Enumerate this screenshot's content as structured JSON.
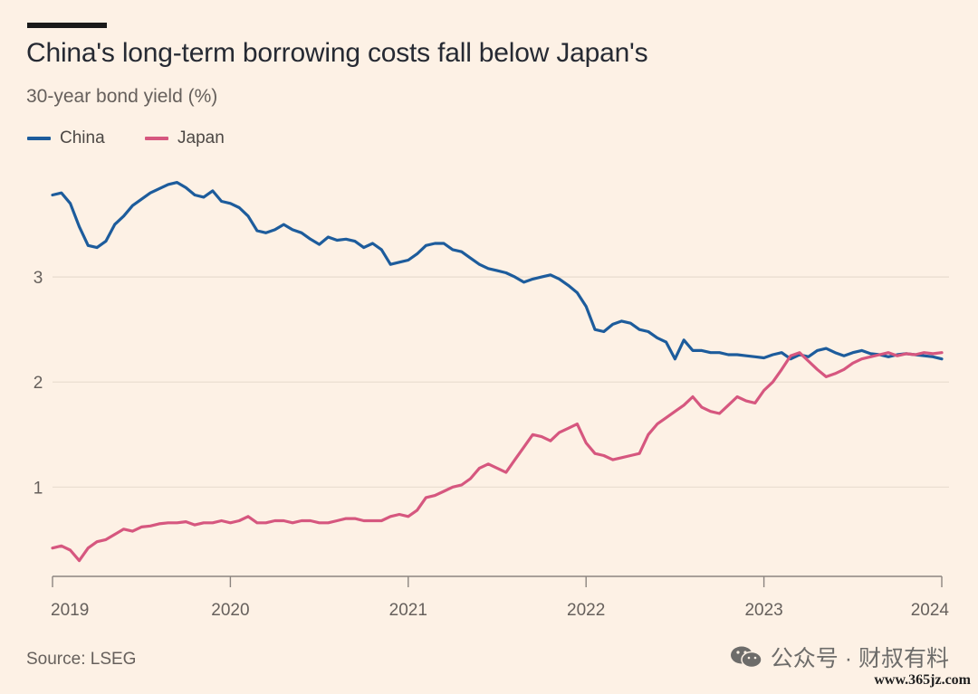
{
  "title": "China's long-term borrowing costs fall below Japan's",
  "subtitle": "30-year bond yield (%)",
  "source": "Source: LSEG",
  "watermark": "公众号 · 财叔有料",
  "site": "www.365jz.com",
  "colors": {
    "background": "#fdf1e5",
    "china": "#1d5c9c",
    "japan": "#d6577f",
    "grid": "#e8dccf",
    "axis": "#66605c"
  },
  "chart_data": {
    "type": "line",
    "title": "China's long-term borrowing costs fall below Japan's",
    "subtitle": "30-year bond yield (%)",
    "xlabel": "",
    "ylabel": "",
    "xlim": [
      2019.0,
      2024.0
    ],
    "ylim": [
      0.15,
      4.0
    ],
    "yticks": [
      1,
      2,
      3
    ],
    "ytick_labels": [
      "1",
      "2",
      "3"
    ],
    "xticks": [
      2019,
      2020,
      2021,
      2022,
      2023,
      2024
    ],
    "xtick_labels": [
      "2019",
      "2020",
      "2021",
      "2022",
      "2023",
      "2024"
    ],
    "legend": "top-left",
    "grid": "horizontal",
    "series": [
      {
        "name": "China",
        "color": "#1d5c9c",
        "x": [
          2019.0,
          2019.05,
          2019.1,
          2019.15,
          2019.2,
          2019.25,
          2019.3,
          2019.35,
          2019.4,
          2019.45,
          2019.5,
          2019.55,
          2019.6,
          2019.65,
          2019.7,
          2019.75,
          2019.8,
          2019.85,
          2019.9,
          2019.95,
          2020.0,
          2020.05,
          2020.1,
          2020.15,
          2020.2,
          2020.25,
          2020.3,
          2020.35,
          2020.4,
          2020.45,
          2020.5,
          2020.55,
          2020.6,
          2020.65,
          2020.7,
          2020.75,
          2020.8,
          2020.85,
          2020.9,
          2020.95,
          2021.0,
          2021.05,
          2021.1,
          2021.15,
          2021.2,
          2021.25,
          2021.3,
          2021.35,
          2021.4,
          2021.45,
          2021.5,
          2021.55,
          2021.6,
          2021.65,
          2021.7,
          2021.75,
          2021.8,
          2021.85,
          2021.9,
          2021.95,
          2022.0,
          2022.05,
          2022.1,
          2022.15,
          2022.2,
          2022.25,
          2022.3,
          2022.35,
          2022.4,
          2022.45,
          2022.5,
          2022.55,
          2022.6,
          2022.65,
          2022.7,
          2022.75,
          2022.8,
          2022.85,
          2022.9,
          2022.95,
          2023.0,
          2023.05,
          2023.1,
          2023.15,
          2023.2,
          2023.25,
          2023.3,
          2023.35,
          2023.4,
          2023.45,
          2023.5,
          2023.55,
          2023.6,
          2023.65,
          2023.7,
          2023.75,
          2023.8,
          2023.85,
          2023.9,
          2023.95,
          2024.0
        ],
        "values": [
          3.78,
          3.8,
          3.7,
          3.48,
          3.3,
          3.28,
          3.34,
          3.5,
          3.58,
          3.68,
          3.74,
          3.8,
          3.84,
          3.88,
          3.9,
          3.85,
          3.78,
          3.76,
          3.82,
          3.72,
          3.7,
          3.66,
          3.58,
          3.44,
          3.42,
          3.45,
          3.5,
          3.45,
          3.42,
          3.36,
          3.31,
          3.38,
          3.35,
          3.36,
          3.34,
          3.28,
          3.32,
          3.26,
          3.12,
          3.14,
          3.16,
          3.22,
          3.3,
          3.32,
          3.32,
          3.26,
          3.24,
          3.18,
          3.12,
          3.08,
          3.06,
          3.04,
          3.0,
          2.95,
          2.98,
          3.0,
          3.02,
          2.98,
          2.92,
          2.85,
          2.72,
          2.5,
          2.48,
          2.55,
          2.58,
          2.56,
          2.5,
          2.48,
          2.42,
          2.38,
          2.22,
          2.4,
          2.3,
          2.3,
          2.28,
          2.28,
          2.26,
          2.26,
          2.25,
          2.24,
          2.23,
          2.26,
          2.28,
          2.22,
          2.26,
          2.24,
          2.3,
          2.32,
          2.28,
          2.25,
          2.28,
          2.3,
          2.27,
          2.26,
          2.24,
          2.26,
          2.27,
          2.26,
          2.25,
          2.24,
          2.22
        ]
      },
      {
        "name": "Japan",
        "color": "#d6577f",
        "x": [
          2019.0,
          2019.05,
          2019.1,
          2019.15,
          2019.2,
          2019.25,
          2019.3,
          2019.35,
          2019.4,
          2019.45,
          2019.5,
          2019.55,
          2019.6,
          2019.65,
          2019.7,
          2019.75,
          2019.8,
          2019.85,
          2019.9,
          2019.95,
          2020.0,
          2020.05,
          2020.1,
          2020.15,
          2020.2,
          2020.25,
          2020.3,
          2020.35,
          2020.4,
          2020.45,
          2020.5,
          2020.55,
          2020.6,
          2020.65,
          2020.7,
          2020.75,
          2020.8,
          2020.85,
          2020.9,
          2020.95,
          2021.0,
          2021.05,
          2021.1,
          2021.15,
          2021.2,
          2021.25,
          2021.3,
          2021.35,
          2021.4,
          2021.45,
          2021.5,
          2021.55,
          2021.6,
          2021.65,
          2021.7,
          2021.75,
          2021.8,
          2021.85,
          2021.9,
          2021.95,
          2022.0,
          2022.05,
          2022.1,
          2022.15,
          2022.2,
          2022.25,
          2022.3,
          2022.35,
          2022.4,
          2022.45,
          2022.5,
          2022.55,
          2022.6,
          2022.65,
          2022.7,
          2022.75,
          2022.8,
          2022.85,
          2022.9,
          2022.95,
          2023.0,
          2023.05,
          2023.1,
          2023.15,
          2023.2,
          2023.25,
          2023.3,
          2023.35,
          2023.4,
          2023.45,
          2023.5,
          2023.55,
          2023.6,
          2023.65,
          2023.7,
          2023.75,
          2023.8,
          2023.85,
          2023.9,
          2023.95,
          2024.0
        ],
        "values": [
          0.42,
          0.44,
          0.4,
          0.3,
          0.42,
          0.48,
          0.5,
          0.55,
          0.6,
          0.58,
          0.62,
          0.63,
          0.65,
          0.66,
          0.66,
          0.67,
          0.64,
          0.66,
          0.66,
          0.68,
          0.66,
          0.68,
          0.72,
          0.66,
          0.66,
          0.68,
          0.68,
          0.66,
          0.68,
          0.68,
          0.66,
          0.66,
          0.68,
          0.7,
          0.7,
          0.68,
          0.68,
          0.68,
          0.72,
          0.74,
          0.72,
          0.78,
          0.9,
          0.92,
          0.96,
          1.0,
          1.02,
          1.08,
          1.18,
          1.22,
          1.18,
          1.14,
          1.26,
          1.38,
          1.5,
          1.48,
          1.44,
          1.52,
          1.56,
          1.6,
          1.42,
          1.32,
          1.3,
          1.26,
          1.28,
          1.3,
          1.32,
          1.5,
          1.6,
          1.66,
          1.72,
          1.78,
          1.86,
          1.76,
          1.72,
          1.7,
          1.78,
          1.86,
          1.82,
          1.8,
          1.92,
          2.0,
          2.12,
          2.25,
          2.28,
          2.2,
          2.12,
          2.05,
          2.08,
          2.12,
          2.18,
          2.22,
          2.24,
          2.26,
          2.28,
          2.25,
          2.27,
          2.26,
          2.28,
          2.27,
          2.28
        ]
      }
    ]
  }
}
